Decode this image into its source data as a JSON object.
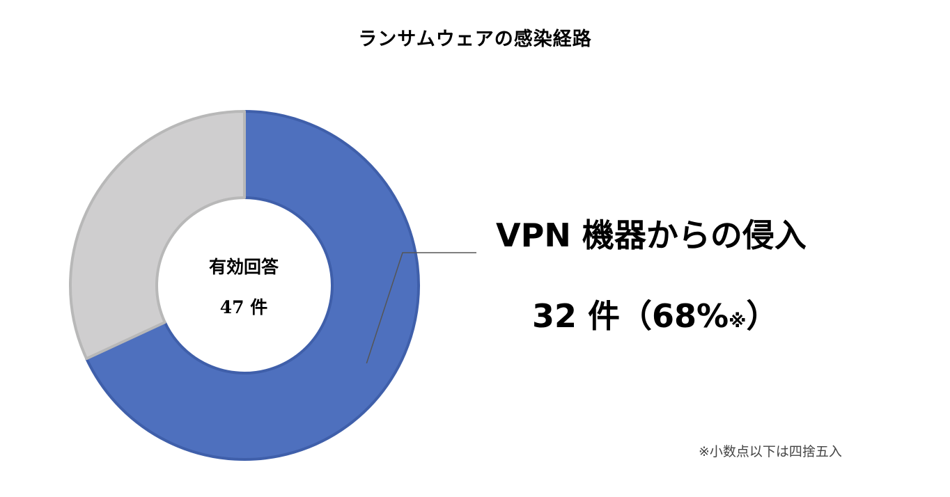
{
  "title": "ランサムウェアの感染経路",
  "center": {
    "line1": "有効回答",
    "line2": "47 件"
  },
  "callout": {
    "category": "VPN  機器からの侵入",
    "count": "32 件（68%",
    "mark": "※",
    "close": "）"
  },
  "footnote": "※小数点以下は四捨五入",
  "colors": {
    "primary_slice": "#4E70BE",
    "primary_edge": "#3F5FAA",
    "other_slice": "#CFCECF",
    "other_edge": "#B8B8B8"
  },
  "chart_data": {
    "type": "pie",
    "style": "donut",
    "total": 47,
    "slices": [
      {
        "label": "VPN  機器からの侵入",
        "value": 32,
        "percent": 68
      },
      {
        "label": "",
        "value": 15,
        "percent": 32
      }
    ]
  }
}
